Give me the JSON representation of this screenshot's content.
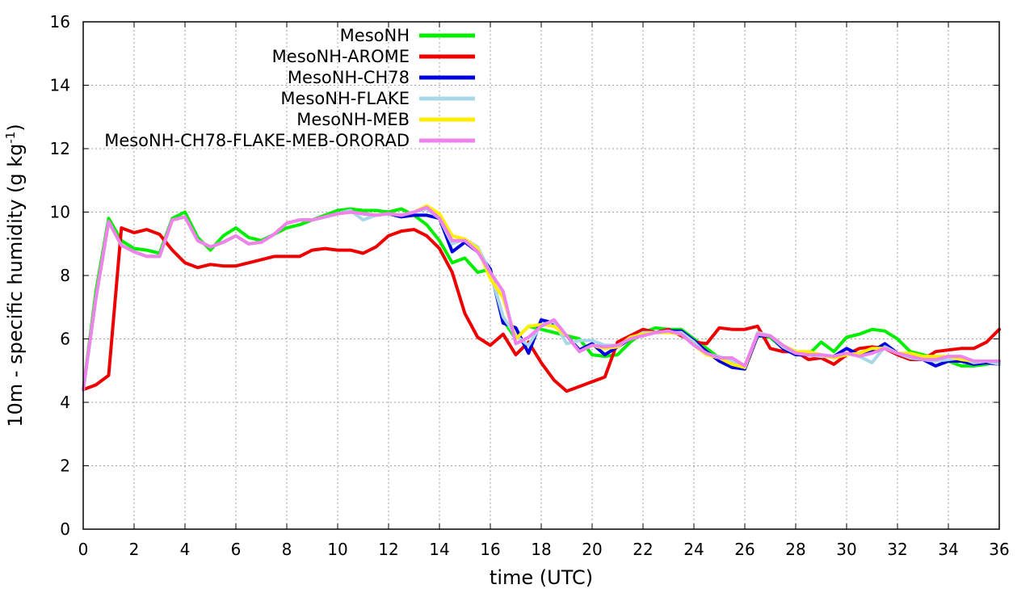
{
  "chart_data": {
    "type": "line",
    "xlabel": "time (UTC)",
    "ylabel_main": "10m - specific humidity (g kg",
    "ylabel_sup": "-1",
    "ylabel_end": ")",
    "xlim": [
      0,
      36
    ],
    "ylim": [
      0,
      16
    ],
    "xticks": [
      0,
      2,
      4,
      6,
      8,
      10,
      12,
      14,
      16,
      18,
      20,
      22,
      24,
      26,
      28,
      30,
      32,
      34,
      36
    ],
    "yticks": [
      0,
      2,
      4,
      6,
      8,
      10,
      12,
      14,
      16
    ],
    "grid": true,
    "legend_position": "top-left",
    "series": [
      {
        "name": "MesoNH",
        "color": "#00ee00",
        "x": [
          0,
          0.5,
          1,
          1.5,
          2,
          2.5,
          3,
          3.5,
          4,
          4.5,
          5,
          5.5,
          6,
          6.5,
          7,
          7.5,
          8,
          8.5,
          9,
          9.5,
          10,
          10.5,
          11,
          11.5,
          12,
          12.5,
          13,
          13.5,
          14,
          14.5,
          15,
          15.5,
          16,
          16.5,
          17,
          17.5,
          18,
          18.5,
          19,
          19.5,
          20,
          20.5,
          21,
          21.5,
          22,
          22.5,
          23,
          23.5,
          24,
          24.5,
          25,
          25.5,
          26,
          26.5,
          27,
          27.5,
          28,
          28.5,
          29,
          29.5,
          30,
          30.5,
          31,
          31.5,
          32,
          32.5,
          33,
          33.5,
          34,
          34.5,
          35,
          35.5,
          36
        ],
        "y": [
          4.4,
          7.5,
          9.8,
          9.1,
          8.85,
          8.8,
          8.7,
          9.8,
          10,
          9.2,
          8.8,
          9.25,
          9.5,
          9.2,
          9.1,
          9.3,
          9.5,
          9.6,
          9.75,
          9.9,
          10.05,
          10.1,
          10.05,
          10.05,
          10,
          10.1,
          9.9,
          9.6,
          9.1,
          8.4,
          8.55,
          8.1,
          8.2,
          6.6,
          6.0,
          6.4,
          6.3,
          6.2,
          6.1,
          6.0,
          5.5,
          5.45,
          5.5,
          5.9,
          6.2,
          6.35,
          6.3,
          6.3,
          6.0,
          5.7,
          5.4,
          5.2,
          5.1,
          6.1,
          6.05,
          5.7,
          5.6,
          5.5,
          5.9,
          5.6,
          6.05,
          6.15,
          6.3,
          6.25,
          6.0,
          5.6,
          5.5,
          5.4,
          5.3,
          5.15,
          5.15,
          5.2,
          5.3
        ]
      },
      {
        "name": "MesoNH-AROME",
        "color": "#ee0000",
        "x": [
          0,
          0.5,
          1,
          1.5,
          2,
          2.5,
          3,
          3.5,
          4,
          4.5,
          5,
          5.5,
          6,
          6.5,
          7,
          7.5,
          8,
          8.5,
          9,
          9.5,
          10,
          10.5,
          11,
          11.5,
          12,
          12.5,
          13,
          13.5,
          14,
          14.5,
          15,
          15.5,
          16,
          16.5,
          17,
          17.5,
          18,
          18.5,
          19,
          19.5,
          20,
          20.5,
          21,
          21.5,
          22,
          22.5,
          23,
          23.5,
          24,
          24.5,
          25,
          25.5,
          26,
          26.5,
          27,
          27.5,
          28,
          28.5,
          29,
          29.5,
          30,
          30.5,
          31,
          31.5,
          32,
          32.5,
          33,
          33.5,
          34,
          34.5,
          35,
          35.5,
          36
        ],
        "y": [
          4.4,
          4.55,
          4.85,
          9.5,
          9.35,
          9.45,
          9.3,
          8.8,
          8.4,
          8.25,
          8.35,
          8.3,
          8.3,
          8.4,
          8.5,
          8.6,
          8.6,
          8.6,
          8.8,
          8.85,
          8.8,
          8.8,
          8.7,
          8.9,
          9.25,
          9.4,
          9.45,
          9.25,
          8.85,
          8.1,
          6.8,
          6.05,
          5.8,
          6.15,
          5.5,
          5.9,
          5.25,
          4.7,
          4.35,
          4.5,
          4.65,
          4.8,
          5.9,
          6.1,
          6.3,
          6.2,
          6.3,
          6.1,
          5.9,
          5.85,
          6.35,
          6.3,
          6.3,
          6.4,
          5.7,
          5.6,
          5.6,
          5.35,
          5.4,
          5.2,
          5.5,
          5.7,
          5.75,
          5.7,
          5.5,
          5.35,
          5.35,
          5.6,
          5.65,
          5.7,
          5.7,
          5.9,
          6.3
        ]
      },
      {
        "name": "MesoNH-CH78",
        "color": "#0000dd",
        "x": [
          0,
          0.5,
          1,
          1.5,
          2,
          2.5,
          3,
          3.5,
          4,
          4.5,
          5,
          5.5,
          6,
          6.5,
          7,
          7.5,
          8,
          8.5,
          9,
          9.5,
          10,
          10.5,
          11,
          11.5,
          12,
          12.5,
          13,
          13.5,
          14,
          14.5,
          15,
          15.5,
          16,
          16.5,
          17,
          17.5,
          18,
          18.5,
          19,
          19.5,
          20,
          20.5,
          21,
          21.5,
          22,
          22.5,
          23,
          23.5,
          24,
          24.5,
          25,
          25.5,
          26,
          26.5,
          27,
          27.5,
          28,
          28.5,
          29,
          29.5,
          30,
          30.5,
          31,
          31.5,
          32,
          32.5,
          33,
          33.5,
          34,
          34.5,
          35,
          35.5,
          36
        ],
        "y": [
          4.4,
          7.3,
          9.7,
          8.95,
          8.75,
          8.6,
          8.6,
          9.75,
          9.85,
          9.1,
          8.9,
          9.05,
          9.25,
          9.0,
          9.05,
          9.3,
          9.65,
          9.75,
          9.75,
          9.85,
          9.95,
          10.0,
          9.95,
          9.9,
          9.95,
          9.85,
          9.9,
          9.9,
          9.8,
          8.75,
          9.05,
          8.75,
          8.2,
          6.5,
          6.35,
          5.55,
          6.6,
          6.5,
          6.1,
          5.65,
          5.85,
          5.5,
          5.75,
          6.0,
          6.2,
          6.2,
          6.25,
          6.25,
          5.95,
          5.6,
          5.3,
          5.1,
          5.05,
          6.1,
          6.1,
          5.7,
          5.5,
          5.5,
          5.45,
          5.45,
          5.7,
          5.5,
          5.6,
          5.85,
          5.55,
          5.4,
          5.35,
          5.15,
          5.3,
          5.3,
          5.2,
          5.25,
          5.2
        ]
      },
      {
        "name": "MesoNH-FLAKE",
        "color": "#a8d8e8",
        "x": [
          0,
          0.5,
          1,
          1.5,
          2,
          2.5,
          3,
          3.5,
          4,
          4.5,
          5,
          5.5,
          6,
          6.5,
          7,
          7.5,
          8,
          8.5,
          9,
          9.5,
          10,
          10.5,
          11,
          11.5,
          12,
          12.5,
          13,
          13.5,
          14,
          14.5,
          15,
          15.5,
          16,
          16.5,
          17,
          17.5,
          18,
          18.5,
          19,
          19.5,
          20,
          20.5,
          21,
          21.5,
          22,
          22.5,
          23,
          23.5,
          24,
          24.5,
          25,
          25.5,
          26,
          26.5,
          27,
          27.5,
          28,
          28.5,
          29,
          29.5,
          30,
          30.5,
          31,
          31.5,
          32,
          32.5,
          33,
          33.5,
          34,
          34.5,
          35,
          35.5,
          36
        ],
        "y": [
          4.4,
          7.3,
          9.7,
          8.95,
          8.75,
          8.6,
          8.6,
          9.75,
          9.85,
          9.1,
          8.9,
          9.05,
          9.25,
          9.0,
          9.05,
          9.3,
          9.65,
          9.75,
          9.75,
          9.85,
          9.95,
          10.05,
          9.75,
          9.9,
          9.95,
          9.9,
          10.0,
          10.1,
          9.8,
          9.0,
          9.15,
          8.9,
          8.1,
          6.7,
          6.1,
          5.8,
          6.45,
          6.55,
          5.85,
          5.95,
          5.95,
          5.8,
          5.8,
          6.0,
          6.2,
          6.2,
          6.2,
          6.2,
          5.9,
          5.5,
          5.45,
          5.3,
          5.1,
          6.2,
          6.1,
          5.75,
          5.55,
          5.5,
          5.45,
          5.45,
          5.55,
          5.45,
          5.25,
          5.75,
          5.55,
          5.4,
          5.35,
          5.3,
          5.35,
          5.4,
          5.25,
          5.3,
          5.2
        ]
      },
      {
        "name": "MesoNH-MEB",
        "color": "#ffee00",
        "x": [
          0,
          0.5,
          1,
          1.5,
          2,
          2.5,
          3,
          3.5,
          4,
          4.5,
          5,
          5.5,
          6,
          6.5,
          7,
          7.5,
          8,
          8.5,
          9,
          9.5,
          10,
          10.5,
          11,
          11.5,
          12,
          12.5,
          13,
          13.5,
          14,
          14.5,
          15,
          15.5,
          16,
          16.5,
          17,
          17.5,
          18,
          18.5,
          19,
          19.5,
          20,
          20.5,
          21,
          21.5,
          22,
          22.5,
          23,
          23.5,
          24,
          24.5,
          25,
          25.5,
          26,
          26.5,
          27,
          27.5,
          28,
          28.5,
          29,
          29.5,
          30,
          30.5,
          31,
          31.5,
          32,
          32.5,
          33,
          33.5,
          34,
          34.5,
          35,
          35.5,
          36
        ],
        "y": [
          4.4,
          7.3,
          9.7,
          8.95,
          8.75,
          8.6,
          8.6,
          9.75,
          9.85,
          9.1,
          8.9,
          9.05,
          9.25,
          9.0,
          9.05,
          9.3,
          9.65,
          9.75,
          9.75,
          9.85,
          9.95,
          10.0,
          9.95,
          9.9,
          9.95,
          9.9,
          10.0,
          10.2,
          9.95,
          9.25,
          9.15,
          8.85,
          7.9,
          7.3,
          6.0,
          6.4,
          6.45,
          6.4,
          6.1,
          5.6,
          5.8,
          5.7,
          5.75,
          6.05,
          6.15,
          6.2,
          6.2,
          6.15,
          5.8,
          5.5,
          5.4,
          5.2,
          5.1,
          6.15,
          6.1,
          5.8,
          5.6,
          5.6,
          5.5,
          5.4,
          5.5,
          5.55,
          5.7,
          5.7,
          5.55,
          5.55,
          5.45,
          5.45,
          5.45,
          5.35,
          5.3,
          5.3,
          5.3
        ]
      },
      {
        "name": "MesoNH-CH78-FLAKE-MEB-ORORAD",
        "color": "#ee82ee",
        "x": [
          0,
          0.5,
          1,
          1.5,
          2,
          2.5,
          3,
          3.5,
          4,
          4.5,
          5,
          5.5,
          6,
          6.5,
          7,
          7.5,
          8,
          8.5,
          9,
          9.5,
          10,
          10.5,
          11,
          11.5,
          12,
          12.5,
          13,
          13.5,
          14,
          14.5,
          15,
          15.5,
          16,
          16.5,
          17,
          17.5,
          18,
          18.5,
          19,
          19.5,
          20,
          20.5,
          21,
          21.5,
          22,
          22.5,
          23,
          23.5,
          24,
          24.5,
          25,
          25.5,
          26,
          26.5,
          27,
          27.5,
          28,
          28.5,
          29,
          29.5,
          30,
          30.5,
          31,
          31.5,
          32,
          32.5,
          33,
          33.5,
          34,
          34.5,
          35,
          35.5,
          36
        ],
        "y": [
          4.4,
          7.3,
          9.7,
          8.95,
          8.75,
          8.6,
          8.6,
          9.75,
          9.85,
          9.1,
          8.9,
          9.05,
          9.25,
          9.0,
          9.05,
          9.3,
          9.65,
          9.75,
          9.75,
          9.85,
          9.95,
          10.0,
          9.95,
          9.9,
          9.95,
          9.9,
          10.0,
          10.15,
          9.8,
          9.1,
          9.1,
          8.75,
          8.1,
          7.5,
          5.85,
          6.05,
          6.4,
          6.6,
          6.1,
          5.6,
          5.8,
          5.75,
          5.8,
          6.0,
          6.1,
          6.2,
          6.25,
          6.15,
          5.8,
          5.55,
          5.4,
          5.4,
          5.15,
          6.15,
          6.1,
          5.8,
          5.55,
          5.5,
          5.5,
          5.45,
          5.55,
          5.45,
          5.55,
          5.7,
          5.55,
          5.45,
          5.35,
          5.35,
          5.45,
          5.45,
          5.3,
          5.3,
          5.3
        ]
      }
    ]
  }
}
